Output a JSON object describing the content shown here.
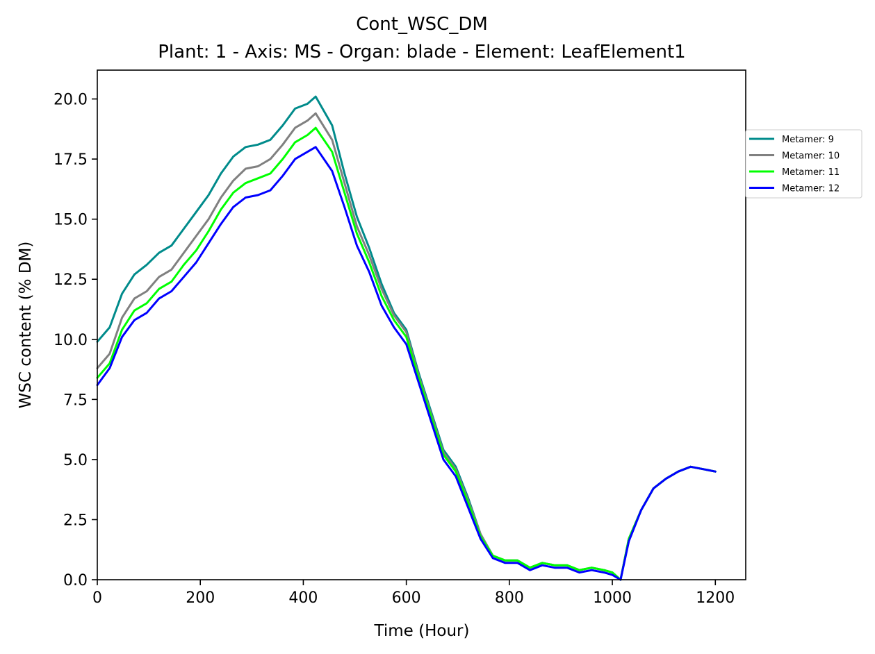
{
  "chart_data": {
    "type": "line",
    "title": "Cont_WSC_DM",
    "subtitle": "Plant: 1 - Axis: MS - Organ: blade - Element: LeafElement1",
    "xlabel": "Time (Hour)",
    "ylabel": "WSC content (% DM)",
    "xlim": [
      0,
      1259
    ],
    "ylim": [
      0,
      21.2
    ],
    "xticks": [
      0,
      200,
      400,
      600,
      800,
      1000,
      1200
    ],
    "xtick_labels": [
      "0",
      "200",
      "400",
      "600",
      "800",
      "1000",
      "1200"
    ],
    "yticks": [
      0,
      2.5,
      5,
      7.5,
      10,
      12.5,
      15,
      17.5,
      20
    ],
    "ytick_labels": [
      "0.0",
      "2.5",
      "5.0",
      "7.5",
      "10.0",
      "12.5",
      "15.0",
      "17.5",
      "20.0"
    ],
    "grid": false,
    "legend_position": "right, outside plot area",
    "x": [
      0,
      24,
      48,
      72,
      96,
      120,
      144,
      168,
      192,
      216,
      240,
      264,
      288,
      312,
      336,
      360,
      384,
      408,
      424,
      456,
      480,
      504,
      528,
      552,
      576,
      600,
      624,
      648,
      672,
      696,
      720,
      744,
      768,
      792,
      816,
      840,
      864,
      888,
      912,
      936,
      960,
      984,
      1000,
      1016,
      1032,
      1056,
      1080,
      1104,
      1128,
      1152,
      1176,
      1200
    ],
    "series": [
      {
        "name": "Metamer: 9",
        "color": "#008b8b",
        "values": [
          9.9,
          10.5,
          11.9,
          12.7,
          13.1,
          13.6,
          13.9,
          14.6,
          15.3,
          16.0,
          16.9,
          17.6,
          18.0,
          18.1,
          18.3,
          18.9,
          19.6,
          19.8,
          20.1,
          18.9,
          16.9,
          15.1,
          13.8,
          12.3,
          11.1,
          10.4,
          8.6,
          7.0,
          5.4,
          4.7,
          3.4,
          1.9,
          1.0,
          0.8,
          0.8,
          0.5,
          0.7,
          0.6,
          0.6,
          0.4,
          0.5,
          0.4,
          0.3,
          0.0,
          1.7,
          2.9,
          3.8,
          4.2,
          4.5,
          4.7,
          4.6,
          4.5
        ]
      },
      {
        "name": "Metamer: 10",
        "color": "#808080",
        "values": [
          8.8,
          9.4,
          10.9,
          11.7,
          12.0,
          12.6,
          12.9,
          13.6,
          14.3,
          15.0,
          15.9,
          16.6,
          17.1,
          17.2,
          17.5,
          18.1,
          18.8,
          19.1,
          19.4,
          18.3,
          16.5,
          14.7,
          13.5,
          12.1,
          11.0,
          10.3,
          8.5,
          6.9,
          5.3,
          4.6,
          3.3,
          1.9,
          1.0,
          0.8,
          0.8,
          0.5,
          0.7,
          0.6,
          0.6,
          0.4,
          0.5,
          0.4,
          0.3,
          0.0,
          1.7,
          2.9,
          3.8,
          4.2,
          4.5,
          4.7,
          4.6,
          4.5
        ]
      },
      {
        "name": "Metamer: 11",
        "color": "#00ff00",
        "values": [
          8.4,
          9.0,
          10.4,
          11.2,
          11.5,
          12.1,
          12.4,
          13.1,
          13.7,
          14.5,
          15.4,
          16.1,
          16.5,
          16.7,
          16.9,
          17.5,
          18.2,
          18.5,
          18.8,
          17.8,
          16.1,
          14.4,
          13.2,
          11.8,
          10.8,
          10.1,
          8.4,
          6.8,
          5.2,
          4.5,
          3.2,
          1.8,
          1.0,
          0.8,
          0.8,
          0.5,
          0.7,
          0.6,
          0.6,
          0.4,
          0.5,
          0.4,
          0.3,
          0.0,
          1.7,
          2.9,
          3.8,
          4.2,
          4.5,
          4.7,
          4.6,
          4.5
        ]
      },
      {
        "name": "Metamer: 12",
        "color": "#0000ff",
        "values": [
          8.1,
          8.8,
          10.1,
          10.8,
          11.1,
          11.7,
          12.0,
          12.6,
          13.2,
          14.0,
          14.8,
          15.5,
          15.9,
          16.0,
          16.2,
          16.8,
          17.5,
          17.8,
          18.0,
          17.0,
          15.5,
          13.9,
          12.8,
          11.4,
          10.5,
          9.8,
          8.2,
          6.6,
          5.0,
          4.3,
          3.0,
          1.7,
          0.9,
          0.7,
          0.7,
          0.4,
          0.6,
          0.5,
          0.5,
          0.3,
          0.4,
          0.3,
          0.2,
          0.0,
          1.6,
          2.9,
          3.8,
          4.2,
          4.5,
          4.7,
          4.6,
          4.5
        ]
      }
    ]
  }
}
